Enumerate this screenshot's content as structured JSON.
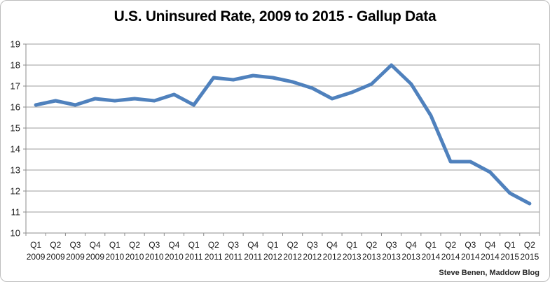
{
  "page": {
    "title": "U.S. Uninsured Rate, 2009 to 2015 - Gallup Data",
    "credit": "Steve Benen, Maddow Blog"
  },
  "chart_data": {
    "type": "line",
    "title": "U.S. Uninsured Rate, 2009 to 2015 - Gallup Data",
    "categories": [
      "Q1 2009",
      "Q2 2009",
      "Q3 2009",
      "Q4 2009",
      "Q1 2010",
      "Q2 2010",
      "Q3 2010",
      "Q4 2010",
      "Q1 2011",
      "Q2 2011",
      "Q3 2011",
      "Q4 2011",
      "Q1 2012",
      "Q2 2012",
      "Q3 2012",
      "Q4 2012",
      "Q1 2013",
      "Q2 2013",
      "Q3 2013",
      "Q4 2013",
      "Q1 2014",
      "Q2 2014",
      "Q3 2014",
      "Q4 2014",
      "Q1 2015",
      "Q2 2015"
    ],
    "values": [
      16.1,
      16.3,
      16.1,
      16.4,
      16.3,
      16.4,
      16.3,
      16.6,
      16.1,
      17.4,
      17.3,
      17.5,
      17.4,
      17.2,
      16.9,
      16.4,
      16.7,
      17.1,
      18.0,
      17.1,
      15.6,
      13.4,
      13.4,
      12.9,
      11.9,
      11.4
    ],
    "xlabel": "",
    "ylabel": "",
    "ylim": [
      10,
      19
    ],
    "ytick_step": 1,
    "yticks": [
      10,
      11,
      12,
      13,
      14,
      15,
      16,
      17,
      18,
      19
    ],
    "grid": true,
    "legend": "none",
    "annotation": "Steve Benen, Maddow Blog",
    "colors": {
      "line": "#4F81BD",
      "grid": "#9c9c9c",
      "axis": "#8c8c8c",
      "text": "#1a1a1a",
      "title": "#000000",
      "background": "#ffffff",
      "frame_border": "#bdbdbd"
    }
  }
}
